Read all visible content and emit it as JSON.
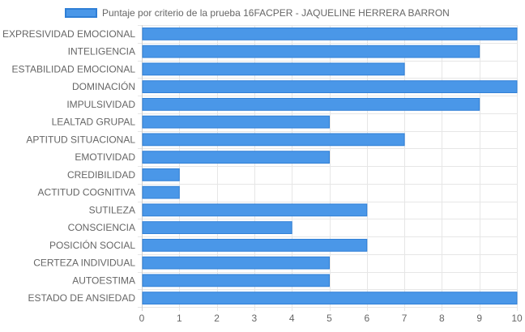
{
  "colors": {
    "bar_fill": "#4a97e8",
    "bar_border": "#2f7fd6",
    "grid": "#e6e6e6",
    "text": "#666666"
  },
  "chart_data": {
    "type": "bar",
    "orientation": "horizontal",
    "legend": "top",
    "grid": true,
    "xlim": [
      0,
      10
    ],
    "x_ticks": [
      "0",
      "1",
      "2",
      "3",
      "4",
      "5",
      "6",
      "7",
      "8",
      "9",
      "10"
    ],
    "categories": [
      "EXPRESIVIDAD EMOCIONAL",
      "INTELIGENCIA",
      "ESTABILIDAD EMOCIONAL",
      "DOMINACIÓN",
      "IMPULSIVIDAD",
      "LEALTAD GRUPAL",
      "APTITUD SITUACIONAL",
      "EMOTIVIDAD",
      "CREDIBILIDAD",
      "ACTITUD COGNITIVA",
      "SUTILEZA",
      "CONSCIENCIA",
      "POSICIÓN SOCIAL",
      "CERTEZA INDIVIDUAL",
      "AUTOESTIMA",
      "ESTADO DE ANSIEDAD"
    ],
    "series": [
      {
        "name": "Puntaje por criterio de la prueba 16FACPER - JAQUELINE HERRERA BARRON",
        "values": [
          10,
          9,
          7,
          10,
          9,
          5,
          7,
          5,
          1,
          1,
          6,
          4,
          6,
          5,
          5,
          10
        ]
      }
    ]
  }
}
